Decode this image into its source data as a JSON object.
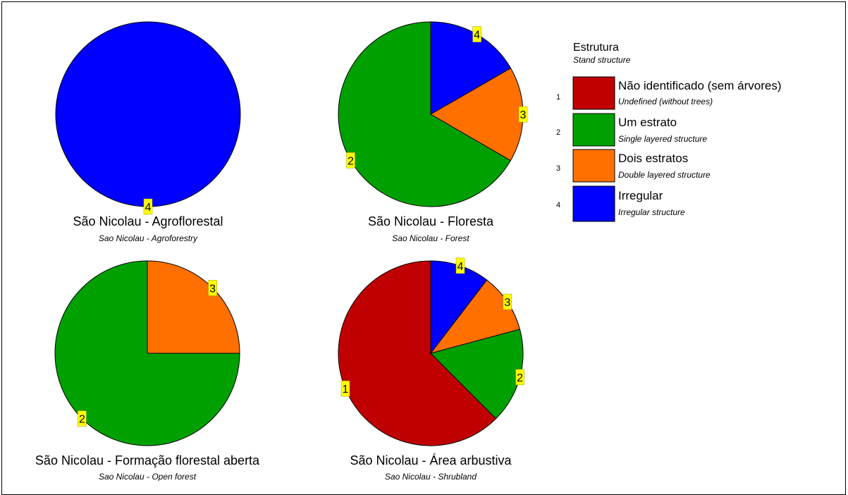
{
  "legend": {
    "title": "Estrutura",
    "subtitle": "Stand structure",
    "items": [
      {
        "code": "1",
        "label": "Não identificado (sem árvores)",
        "sublabel": "Undefined (without trees)",
        "color": "#c00000"
      },
      {
        "code": "2",
        "label": "Um estrato",
        "sublabel": "Single layered structure",
        "color": "#00a000"
      },
      {
        "code": "3",
        "label": "Dois estratos",
        "sublabel": "Double layered structure",
        "color": "#ff7000"
      },
      {
        "code": "4",
        "label": "Irregular",
        "sublabel": "Irregular structure",
        "color": "#0000ff"
      }
    ]
  },
  "chart_data": [
    {
      "type": "pie",
      "title": "São Nicolau - Agroflorestal",
      "subtitle": "Sao Nicolau - Agroforestry",
      "slices": [
        {
          "category": "4",
          "value": 100
        }
      ]
    },
    {
      "type": "pie",
      "title": "São Nicolau  - Floresta",
      "subtitle": "Sao Nicolau - Forest",
      "slices": [
        {
          "category": "2",
          "value": 66.7
        },
        {
          "category": "3",
          "value": 16.7
        },
        {
          "category": "4",
          "value": 16.7
        }
      ]
    },
    {
      "type": "pie",
      "title": "São Nicolau - Formação florestal aberta",
      "subtitle": "Sao Nicolau - Open forest",
      "slices": [
        {
          "category": "2",
          "value": 75
        },
        {
          "category": "3",
          "value": 25
        }
      ]
    },
    {
      "type": "pie",
      "title": "São Nicolau - Área arbustiva",
      "subtitle": "Sao Nicolau - Shrubland",
      "slices": [
        {
          "category": "1",
          "value": 62.5
        },
        {
          "category": "2",
          "value": 16.7
        },
        {
          "category": "3",
          "value": 10.4
        },
        {
          "category": "4",
          "value": 10.4
        }
      ]
    }
  ]
}
